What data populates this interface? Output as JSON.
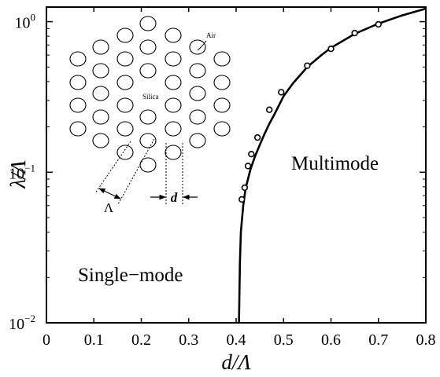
{
  "chart_data": {
    "type": "line",
    "title": "",
    "xlabel": "d/Λ",
    "ylabel": "λ/Λ",
    "xlim": [
      0,
      0.8
    ],
    "ylim": [
      0.01,
      1.25
    ],
    "y_scale": "log",
    "x_ticks": [
      0,
      0.1,
      0.2,
      0.3,
      0.4,
      0.5,
      0.6,
      0.7,
      0.8
    ],
    "x_tick_labels": [
      "0",
      "0.1",
      "0.2",
      "0.3",
      "0.4",
      "0.5",
      "0.6",
      "0.7",
      "0.8"
    ],
    "y_ticks": [
      {
        "value": 0.01,
        "base": "10",
        "exp": "−2"
      },
      {
        "value": 0.1,
        "base": "10",
        "exp": "−1"
      },
      {
        "value": 1,
        "base": "10",
        "exp": "0"
      }
    ],
    "grid": false,
    "series": [
      {
        "type": "line",
        "x": [
          0.406,
          0.408,
          0.41,
          0.415,
          0.42,
          0.43,
          0.44,
          0.45,
          0.46,
          0.47,
          0.48,
          0.5,
          0.52,
          0.55,
          0.58,
          0.6,
          0.65,
          0.7,
          0.75,
          0.8
        ],
        "y": [
          0.01,
          0.025,
          0.04,
          0.06,
          0.078,
          0.104,
          0.128,
          0.152,
          0.18,
          0.21,
          0.24,
          0.32,
          0.39,
          0.5,
          0.6,
          0.67,
          0.83,
          0.97,
          1.1,
          1.22
        ]
      },
      {
        "type": "scatter",
        "x": [
          0.412,
          0.418,
          0.425,
          0.432,
          0.445,
          0.47,
          0.495,
          0.55,
          0.6,
          0.65,
          0.7
        ],
        "y": [
          0.066,
          0.079,
          0.11,
          0.132,
          0.17,
          0.26,
          0.34,
          0.51,
          0.66,
          0.84,
          0.96
        ]
      }
    ],
    "annotations": {
      "multimode": "Multimode",
      "single_mode": "Single−mode",
      "air": "Air",
      "silica": "Silica",
      "pitch": "Λ",
      "diameter": "d"
    }
  }
}
